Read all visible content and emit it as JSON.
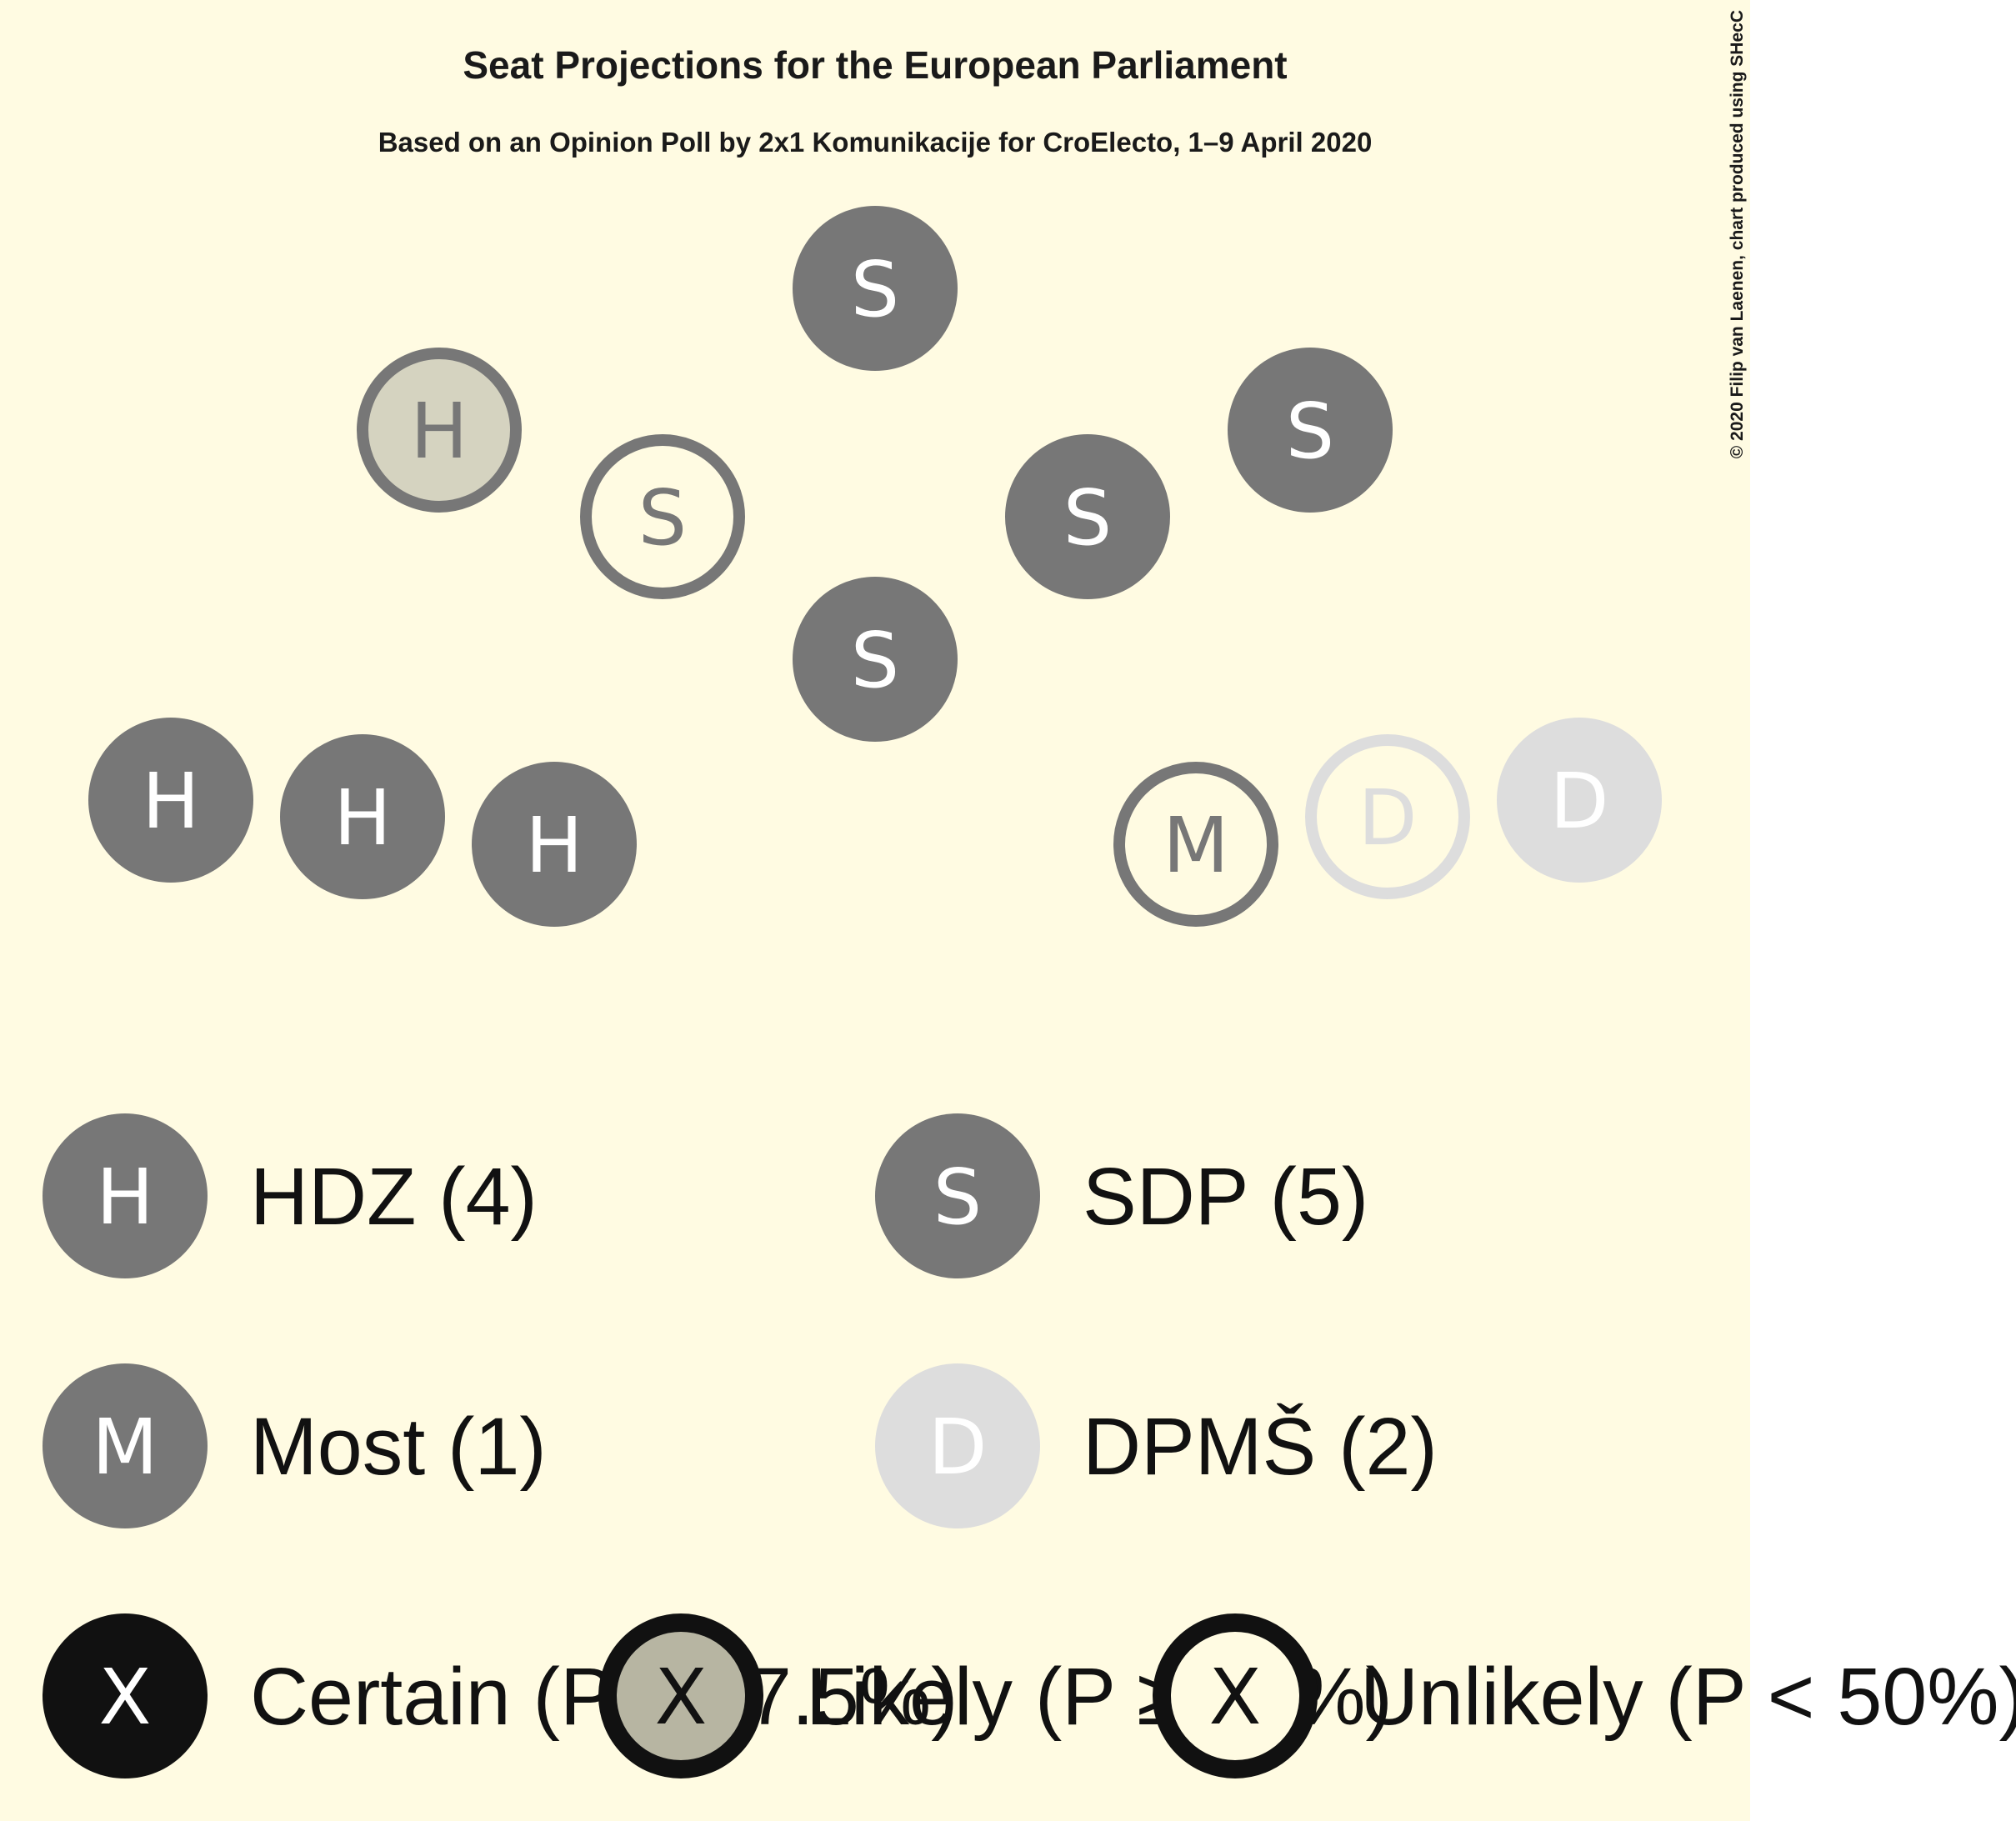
{
  "chart_data": {
    "type": "seat-projection",
    "title": "Seat Projections for the European Parliament",
    "subtitle": "Based on an Opinion Poll by 2x1 Komunikacije for CroElecto, 1–9 April 2020",
    "credit": "© 2020 Filip van Laenen, chart produced using SHecC",
    "colors": {
      "background": "#fffbe2",
      "page": "#ffffff",
      "hdz": "#777777",
      "sdp": "#777777",
      "most": "#777777",
      "dpms": "#dddddd",
      "likely_fill": "#d5d3c0",
      "certain_legend": "#111111",
      "likely_legend": "#b7b5a2"
    },
    "parties": [
      {
        "id": "hdz",
        "letter": "H",
        "label": "HDZ (4)",
        "seats": 4,
        "certain": 3,
        "likely": 1,
        "unlikely": 0
      },
      {
        "id": "sdp",
        "letter": "S",
        "label": "SDP (5)",
        "seats": 5,
        "certain": 4,
        "likely": 0,
        "unlikely": 1
      },
      {
        "id": "most",
        "letter": "M",
        "label": "Most (1)",
        "seats": 1,
        "certain": 0,
        "likely": 0,
        "unlikely": 1
      },
      {
        "id": "dpms",
        "letter": "D",
        "label": "DPMŠ (2)",
        "seats": 2,
        "certain": 1,
        "likely": 0,
        "unlikely": 1
      }
    ],
    "probability_legend": [
      {
        "id": "certain",
        "letter": "X",
        "label": "Certain (P ≥ 97.5%)"
      },
      {
        "id": "likely",
        "letter": "X",
        "label": "Likely (P ≥ 50%)"
      },
      {
        "id": "unlikely",
        "letter": "X",
        "label": "Unlikely (P < 50%)"
      }
    ]
  }
}
